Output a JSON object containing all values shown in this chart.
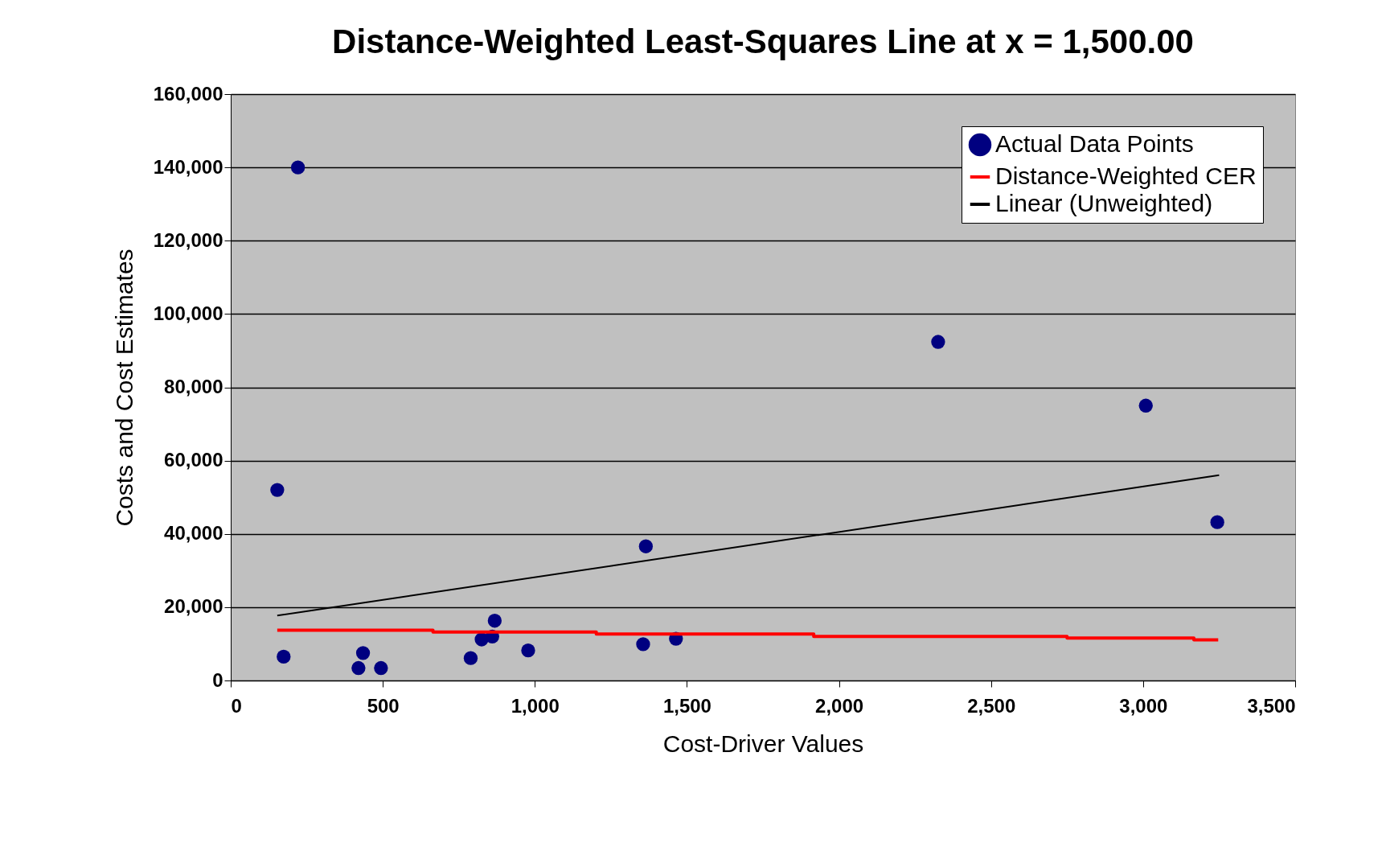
{
  "chart_data": {
    "type": "scatter",
    "title": "Distance-Weighted Least-Squares Line at x = 1,500.00",
    "xlabel": "Cost-Driver Values",
    "ylabel": "Costs and Cost Estimates",
    "series": [
      {
        "name": "Actual Data Points",
        "type": "scatter",
        "marker": "circle",
        "color": "#000080",
        "x": [
          153,
          221,
          174,
          420,
          435,
          494,
          789,
          825,
          860,
          868,
          978,
          1356,
          1365,
          1464,
          2326,
          3009,
          3244
        ],
        "values": [
          52000,
          140000,
          6500,
          3400,
          7500,
          3400,
          6100,
          11200,
          12000,
          16300,
          8200,
          9900,
          36600,
          11400,
          92400,
          75000,
          43200
        ]
      },
      {
        "name": "Distance-Weighted CER",
        "type": "step",
        "color": "#ff0000",
        "x": [
          153,
          665,
          1202,
          1917,
          2750,
          3167,
          3247
        ],
        "values": [
          13700,
          13200,
          12700,
          12000,
          11600,
          11100,
          11100
        ]
      },
      {
        "name": "Linear (Unweighted)",
        "type": "line",
        "color": "#000000",
        "x": [
          153,
          3250
        ],
        "values": [
          17700,
          56000
        ]
      }
    ],
    "xlim": [
      0,
      3500
    ],
    "xticks": [
      0,
      500,
      {
        "value": 1000,
        "label": "1,000"
      },
      {
        "value": 1500,
        "label": "1,500"
      },
      {
        "value": 2000,
        "label": "2,000"
      },
      {
        "value": 2500,
        "label": "2,500"
      },
      {
        "value": 3000,
        "label": "3,000"
      },
      {
        "value": 3500,
        "label": "3,500"
      }
    ],
    "ylim": [
      0,
      160000
    ],
    "yticks": [
      0,
      {
        "value": 20000,
        "label": "20,000"
      },
      {
        "value": 40000,
        "label": "40,000"
      },
      {
        "value": 60000,
        "label": "60,000"
      },
      {
        "value": 80000,
        "label": "80,000"
      },
      {
        "value": 100000,
        "label": "100,000"
      },
      {
        "value": 120000,
        "label": "120,000"
      },
      {
        "value": 140000,
        "label": "140,000"
      },
      {
        "value": 160000,
        "label": "160,000"
      }
    ],
    "grid": "y",
    "legend": "top right",
    "line_style": "solid"
  }
}
